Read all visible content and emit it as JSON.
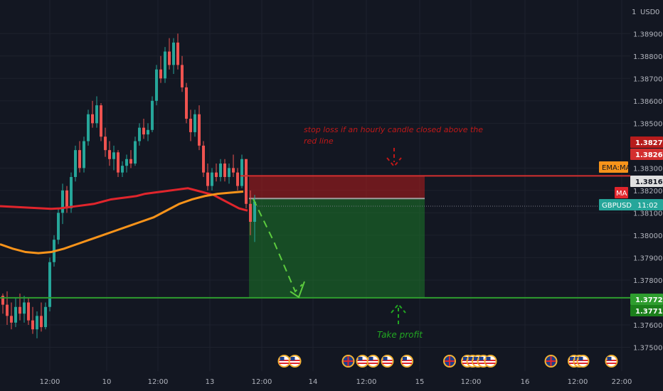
{
  "header": {
    "currency_label": "USD",
    "currency_sub": "0"
  },
  "chart_data": {
    "type": "candlestick",
    "symbol": "GBPUSD",
    "countdown": "11:02",
    "ylim": [
      1.374,
      1.3905
    ],
    "y_ticks": [
      "1.38900",
      "1.38800",
      "1.38700",
      "1.38600",
      "1.38500",
      "1.38300",
      "1.38200",
      "1.38100",
      "1.38000",
      "1.37900",
      "1.37800",
      "1.37600",
      "1.37500"
    ],
    "x_ticks": [
      "12:00",
      "10",
      "12:00",
      "13",
      "12:00",
      "14",
      "12:00",
      "15",
      "12:00",
      "16",
      "12:00",
      "22:00"
    ],
    "x_range": [
      0,
      260
    ],
    "candles": [
      [
        1.3773,
        1.3774,
        1.3765,
        1.3769
      ],
      [
        1.3769,
        1.3775,
        1.376,
        1.3764
      ],
      [
        1.3764,
        1.377,
        1.3758,
        1.3761
      ],
      [
        1.3761,
        1.3772,
        1.3759,
        1.3768
      ],
      [
        1.3768,
        1.3774,
        1.3762,
        1.3765
      ],
      [
        1.3765,
        1.3773,
        1.3761,
        1.377
      ],
      [
        1.377,
        1.3772,
        1.376,
        1.3762
      ],
      [
        1.3762,
        1.3768,
        1.3756,
        1.3758
      ],
      [
        1.3758,
        1.3766,
        1.3754,
        1.3764
      ],
      [
        1.3764,
        1.377,
        1.3757,
        1.3759
      ],
      [
        1.3759,
        1.377,
        1.3758,
        1.3768
      ],
      [
        1.3768,
        1.379,
        1.3766,
        1.3788
      ],
      [
        1.3788,
        1.38,
        1.3786,
        1.3798
      ],
      [
        1.3798,
        1.3812,
        1.3796,
        1.381
      ],
      [
        1.381,
        1.3823,
        1.3805,
        1.382
      ],
      [
        1.382,
        1.3822,
        1.381,
        1.3812
      ],
      [
        1.3812,
        1.3828,
        1.381,
        1.3826
      ],
      [
        1.3826,
        1.384,
        1.3824,
        1.3838
      ],
      [
        1.3838,
        1.3842,
        1.3828,
        1.383
      ],
      [
        1.383,
        1.3844,
        1.3828,
        1.3842
      ],
      [
        1.3842,
        1.3856,
        1.384,
        1.3854
      ],
      [
        1.3854,
        1.386,
        1.3848,
        1.385
      ],
      [
        1.385,
        1.3862,
        1.3848,
        1.3858
      ],
      [
        1.3858,
        1.3859,
        1.3842,
        1.3844
      ],
      [
        1.3844,
        1.3848,
        1.3835,
        1.3838
      ],
      [
        1.3838,
        1.3842,
        1.3831,
        1.3834
      ],
      [
        1.3834,
        1.384,
        1.3829,
        1.3837
      ],
      [
        1.3837,
        1.3838,
        1.3826,
        1.3828
      ],
      [
        1.3828,
        1.3833,
        1.3826,
        1.3831
      ],
      [
        1.3831,
        1.3836,
        1.3828,
        1.3834
      ],
      [
        1.3834,
        1.3838,
        1.383,
        1.3832
      ],
      [
        1.3832,
        1.3844,
        1.3831,
        1.3842
      ],
      [
        1.3842,
        1.385,
        1.384,
        1.3848
      ],
      [
        1.3848,
        1.3852,
        1.3843,
        1.3845
      ],
      [
        1.3845,
        1.385,
        1.3842,
        1.3847
      ],
      [
        1.3847,
        1.3862,
        1.3846,
        1.386
      ],
      [
        1.386,
        1.3876,
        1.3858,
        1.3874
      ],
      [
        1.3874,
        1.388,
        1.3868,
        1.387
      ],
      [
        1.387,
        1.3884,
        1.3868,
        1.3882
      ],
      [
        1.3882,
        1.3888,
        1.3874,
        1.3876
      ],
      [
        1.3876,
        1.3888,
        1.3872,
        1.3886
      ],
      [
        1.3886,
        1.389,
        1.3874,
        1.3876
      ],
      [
        1.3876,
        1.388,
        1.3864,
        1.3866
      ],
      [
        1.3866,
        1.3868,
        1.385,
        1.3852
      ],
      [
        1.3852,
        1.3856,
        1.3842,
        1.3846
      ],
      [
        1.3846,
        1.3856,
        1.3844,
        1.3854
      ],
      [
        1.3854,
        1.3858,
        1.3838,
        1.384
      ],
      [
        1.384,
        1.3842,
        1.3826,
        1.3828
      ],
      [
        1.3828,
        1.3832,
        1.382,
        1.3822
      ],
      [
        1.3822,
        1.383,
        1.382,
        1.3828
      ],
      [
        1.3828,
        1.3832,
        1.3824,
        1.3826
      ],
      [
        1.3826,
        1.3834,
        1.3824,
        1.3832
      ],
      [
        1.3832,
        1.3834,
        1.3824,
        1.3826
      ],
      [
        1.3826,
        1.3832,
        1.3823,
        1.383
      ],
      [
        1.383,
        1.3836,
        1.3826,
        1.3828
      ],
      [
        1.3828,
        1.383,
        1.382,
        1.3822
      ],
      [
        1.3822,
        1.3836,
        1.3821,
        1.3834
      ],
      [
        1.3834,
        1.3834,
        1.3812,
        1.3814
      ],
      [
        1.3814,
        1.382,
        1.38,
        1.3806
      ],
      [
        1.3806,
        1.3818,
        1.3797,
        1.3815
      ]
    ],
    "ma": {
      "label": "MA",
      "color": "#e0252c",
      "values": [
        1.3813,
        1.38128,
        1.38126,
        1.38124,
        1.38122,
        1.3812,
        1.38118,
        1.3812,
        1.38125,
        1.3813,
        1.38135,
        1.3814,
        1.3815,
        1.3816,
        1.38165,
        1.3817,
        1.38175,
        1.38185,
        1.3819,
        1.38195,
        1.382,
        1.38205,
        1.3821,
        1.382,
        1.3819,
        1.3818,
        1.3816,
        1.3814,
        1.3812,
        1.3811
      ]
    },
    "ema": {
      "label": "EMA:MA",
      "color": "#f7931a",
      "values": [
        1.3796,
        1.3794,
        1.37925,
        1.3792,
        1.37925,
        1.3794,
        1.3796,
        1.3798,
        1.38,
        1.3802,
        1.3804,
        1.3806,
        1.3808,
        1.3811,
        1.3814,
        1.3816,
        1.38175,
        1.38185,
        1.3819,
        1.38195
      ]
    },
    "price_tags": [
      {
        "price": "1.38272",
        "bg": "#b71c1c",
        "fg": "#ffffff",
        "value": 1.38272
      },
      {
        "price": "1.38265",
        "bg": "#d32f2f",
        "fg": "#ffffff",
        "value": 1.38265
      },
      {
        "price": "1.38164",
        "bg": "#e0e0e0",
        "fg": "#131722",
        "value": 1.38164
      },
      {
        "price": "1.37721",
        "bg": "#2e9d2e",
        "fg": "#ffffff",
        "value": 1.37721
      },
      {
        "price": "1.37719",
        "bg": "#1b7f1b",
        "fg": "#ffffff",
        "value": 1.37719
      }
    ],
    "label_tags": [
      {
        "text": "EMA:MA",
        "bg": "#f7931a",
        "fg": "#131722",
        "value": 1.38272
      },
      {
        "text": "MA",
        "bg": "#e0252c",
        "fg": "#ffffff",
        "value": 1.38172
      }
    ],
    "levels": {
      "stop": 1.38265,
      "entry": 1.38164,
      "target": 1.37721,
      "current": 1.3813
    },
    "annotations": {
      "stop_text_line1": "stop loss if an hourly candle closed above the",
      "stop_text_line2": "red line",
      "take_profit": "Take profit"
    },
    "events": [
      {
        "flag": "us",
        "x": 155
      },
      {
        "flag": "us",
        "x": 161
      },
      {
        "flag": "uk",
        "x": 191
      },
      {
        "flag": "us",
        "x": 199
      },
      {
        "flag": "us",
        "x": 205
      },
      {
        "flag": "us",
        "x": 213
      },
      {
        "flag": "us",
        "x": 224
      },
      {
        "flag": "uk",
        "x": 248
      },
      {
        "flag": "us",
        "x": 258
      },
      {
        "flag": "us",
        "x": 261
      },
      {
        "flag": "us",
        "x": 264
      },
      {
        "flag": "us",
        "x": 267
      },
      {
        "flag": "us",
        "x": 271
      },
      {
        "flag": "uk",
        "x": 305
      },
      {
        "flag": "us",
        "x": 318
      },
      {
        "flag": "us",
        "x": 321
      },
      {
        "flag": "us",
        "x": 323
      },
      {
        "flag": "us",
        "x": 339
      }
    ],
    "colors": {
      "up": "#26a69a",
      "down": "#ef5350",
      "grid": "#1e222d",
      "bg": "#131722"
    }
  }
}
